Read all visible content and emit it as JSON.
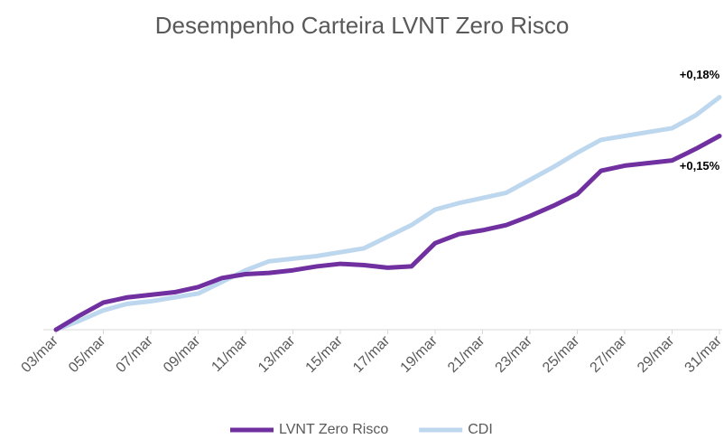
{
  "chart_data": {
    "type": "line",
    "title": "Desempenho Carteira LVNT Zero Risco",
    "categories": [
      "03/mar",
      null,
      "05/mar",
      null,
      "07/mar",
      null,
      "09/mar",
      null,
      "11/mar",
      null,
      "13/mar",
      null,
      "15/mar",
      null,
      "17/mar",
      null,
      "19/mar",
      null,
      "21/mar",
      null,
      "23/mar",
      null,
      "25/mar",
      null,
      "27/mar",
      null,
      "29/mar",
      null,
      "31/mar"
    ],
    "series": [
      {
        "name": "LVNT Zero Risco",
        "color": "#7030a0",
        "values": [
          0,
          0.011,
          0.021,
          0.025,
          0.027,
          0.029,
          0.033,
          0.04,
          0.043,
          0.044,
          0.046,
          0.049,
          0.051,
          0.05,
          0.048,
          0.049,
          0.067,
          0.074,
          0.077,
          0.081,
          0.088,
          0.096,
          0.105,
          0.123,
          0.127,
          0.129,
          0.131,
          0.14,
          0.15
        ],
        "value_labels": [
          null,
          null,
          null,
          null,
          null,
          null,
          null,
          null,
          null,
          null,
          null,
          null,
          null,
          null,
          null,
          null,
          null,
          null,
          null,
          null,
          null,
          null,
          null,
          null,
          null,
          null,
          null,
          null,
          "+0,15%"
        ]
      },
      {
        "name": "CDI",
        "color": "#bdd7ee",
        "values": [
          0,
          0.007,
          0.015,
          0.02,
          0.022,
          0.025,
          0.028,
          0.037,
          0.046,
          0.053,
          0.055,
          0.057,
          0.06,
          0.063,
          0.072,
          0.081,
          0.093,
          0.098,
          0.102,
          0.106,
          0.116,
          0.126,
          0.137,
          0.147,
          0.15,
          0.153,
          0.156,
          0.166,
          0.18
        ],
        "value_labels": [
          null,
          null,
          null,
          null,
          null,
          null,
          null,
          null,
          null,
          null,
          null,
          null,
          null,
          null,
          null,
          null,
          null,
          null,
          null,
          null,
          null,
          null,
          null,
          null,
          null,
          null,
          null,
          null,
          "+0,18%"
        ]
      }
    ],
    "ylim": [
      0,
      0.2
    ]
  }
}
